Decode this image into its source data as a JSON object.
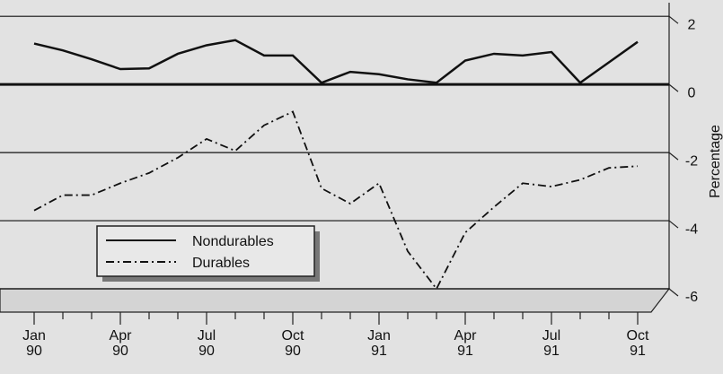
{
  "chart_data": {
    "type": "line",
    "y_label": "Percentage",
    "categories": [
      "Jan 90",
      null,
      null,
      "Apr 90",
      null,
      null,
      "Jul 90",
      null,
      null,
      "Oct 90",
      null,
      null,
      "Jan 91",
      null,
      null,
      "Apr 91",
      null,
      null,
      "Jul 91",
      null,
      null,
      "Oct 91"
    ],
    "series": [
      {
        "name": "Nondurables",
        "color": "#111111",
        "style": "solid",
        "values": [
          1.2,
          1.0,
          0.74,
          0.45,
          0.47,
          0.9,
          1.15,
          1.3,
          0.85,
          0.85,
          0.05,
          0.37,
          0.3,
          0.15,
          0.05,
          0.7,
          0.9,
          0.85,
          0.95,
          0.05,
          0.65,
          1.25
        ]
      },
      {
        "name": "Durables",
        "color": "#111111",
        "style": "dashdot",
        "values": [
          -3.7,
          -3.25,
          -3.25,
          -2.9,
          -2.6,
          -2.15,
          -1.6,
          -1.95,
          -1.2,
          -0.8,
          -3.05,
          -3.5,
          -2.9,
          -4.9,
          -6.0,
          -4.35,
          -3.6,
          -2.9,
          -3.0,
          -2.8,
          -2.45,
          -2.4
        ]
      }
    ],
    "ylim": [
      -6,
      2.4
    ],
    "yticks": [
      2,
      0,
      -2,
      -4,
      -6
    ],
    "grid": true,
    "legend": "lower-left"
  }
}
